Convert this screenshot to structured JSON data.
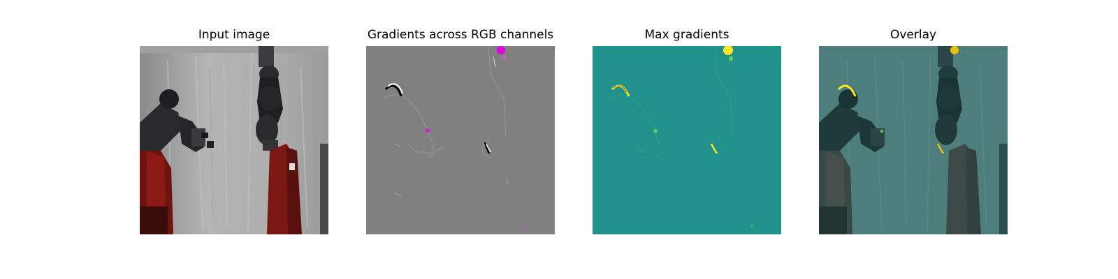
{
  "panels": [
    {
      "title": "Input image",
      "image": "robot-arms-photo"
    },
    {
      "title": "Gradients across RGB channels",
      "image": "rgb-gradient-map"
    },
    {
      "title": "Max gradients",
      "image": "max-gradient-heatmap"
    },
    {
      "title": "Overlay",
      "image": "gradient-overlay-on-photo"
    }
  ],
  "colors": {
    "background": "#ffffff",
    "gradient_gray": "#808080",
    "heatmap_teal": "#21918c",
    "heatmap_yellow": "#fde725",
    "heatmap_green": "#5ec962",
    "robot_red": "#8b1a14",
    "highlight_magenta": "#e000e0"
  }
}
